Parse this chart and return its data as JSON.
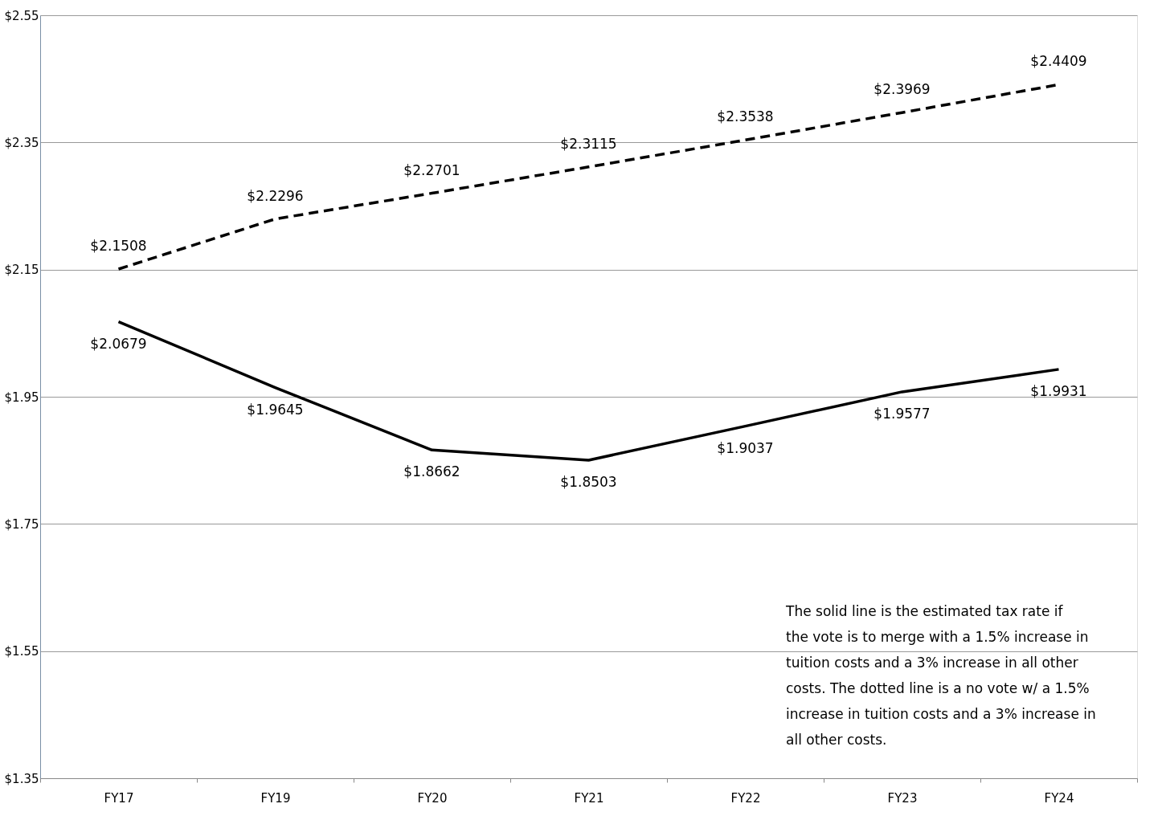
{
  "chart_data": {
    "type": "line",
    "categories": [
      "FY17",
      "FY19",
      "FY20",
      "FY21",
      "FY22",
      "FY23",
      "FY24"
    ],
    "series": [
      {
        "color": "#000000",
        "line_style": "dashed",
        "values": [
          2.1508,
          2.2296,
          2.2701,
          2.3115,
          2.3538,
          2.3969,
          2.4409
        ],
        "value_labels": [
          "$2.1508",
          "$2.2296",
          "$2.2701",
          "$2.3115",
          "$2.3538",
          "$2.3969",
          "$2.4409"
        ]
      },
      {
        "color": "#000000",
        "line_style": "solid",
        "values": [
          2.0679,
          1.9645,
          1.8662,
          1.8503,
          1.9037,
          1.9577,
          1.9931
        ],
        "value_labels": [
          "$2.0679",
          "$1.9645",
          "$1.8662",
          "$1.8503",
          "$1.9037",
          "$1.9577",
          "$1.9931"
        ]
      }
    ],
    "ylim": [
      1.35,
      2.55
    ],
    "yticks": [
      {
        "value": 1.35,
        "label": "$1.35"
      },
      {
        "value": 1.55,
        "label": "$1.55"
      },
      {
        "value": 1.75,
        "label": "$1.75"
      },
      {
        "value": 1.95,
        "label": "$1.95"
      },
      {
        "value": 2.15,
        "label": "$2.15"
      },
      {
        "value": 2.35,
        "label": "$2.35"
      },
      {
        "value": 2.55,
        "label": "$2.55"
      }
    ],
    "grid": "y",
    "marker": "none",
    "annotations": [
      "The solid line is the estimated tax rate if the vote is to merge with a 1.5% increase in tuition costs and a 3% increase in all other costs.  The dotted line is a no vote w/ a 1.5% increase in tuition costs and a 3% increase in all other costs."
    ]
  }
}
